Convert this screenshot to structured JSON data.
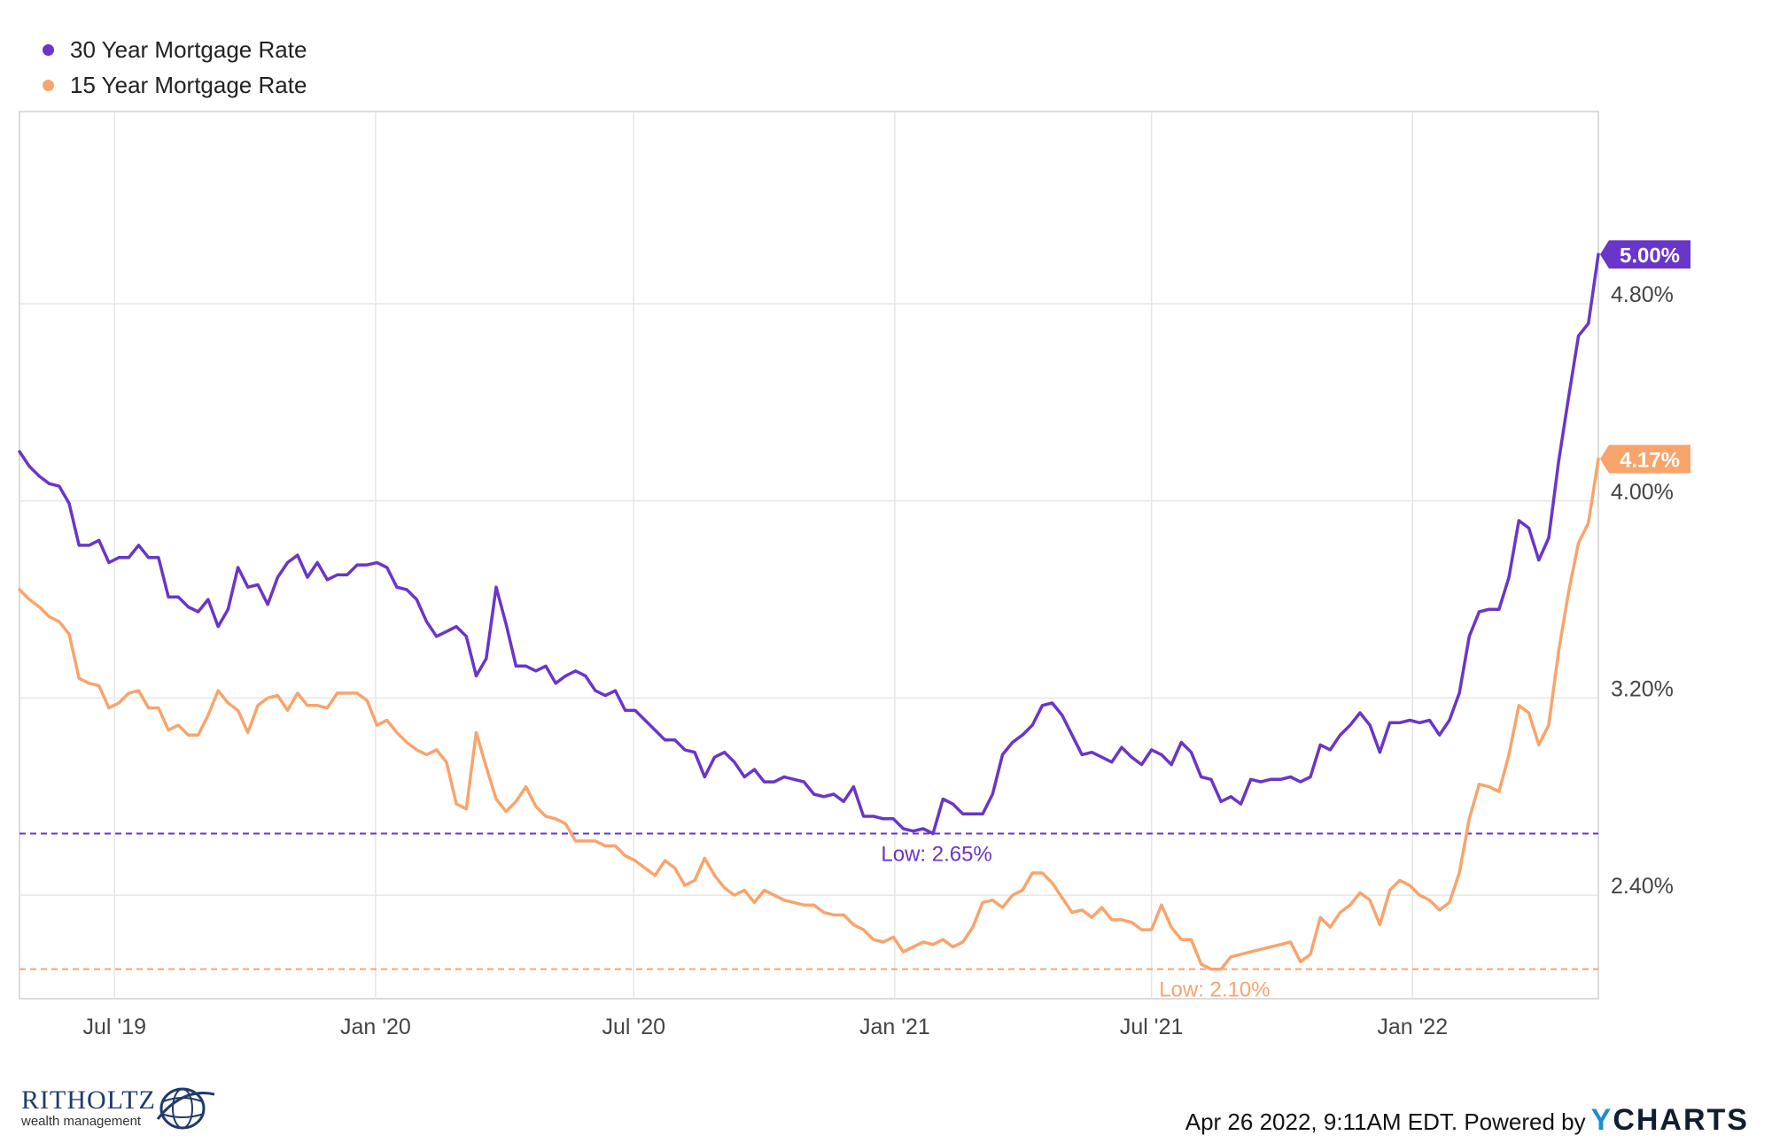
{
  "legend": [
    {
      "label": "30 Year Mortgage Rate",
      "color": "#6a35c9"
    },
    {
      "label": "15 Year Mortgage Rate",
      "color": "#f8a46c"
    }
  ],
  "footer": {
    "stamp": "Apr 26 2022, 9:11AM EDT. Powered by",
    "brand_y": "Y",
    "brand_rest": "CHARTS"
  },
  "logo": {
    "main": "RITHOLTZ",
    "sub": "wealth management"
  },
  "chart_data": {
    "type": "line",
    "x_start": "2019-04-25",
    "x_step_days": 7,
    "x_tick_labels": [
      {
        "label": "Jul '19",
        "date": "2019-07-01"
      },
      {
        "label": "Jan '20",
        "date": "2020-01-01"
      },
      {
        "label": "Jul '20",
        "date": "2020-07-01"
      },
      {
        "label": "Jan '21",
        "date": "2021-01-01"
      },
      {
        "label": "Jul '21",
        "date": "2021-07-01"
      },
      {
        "label": "Jan '22",
        "date": "2022-01-01"
      }
    ],
    "y_ticks": [
      {
        "label": "2.40%",
        "value": 2.4
      },
      {
        "label": "3.20%",
        "value": 3.2
      },
      {
        "label": "4.00%",
        "value": 4.0
      },
      {
        "label": "4.80%",
        "value": 4.8
      }
    ],
    "ylim": [
      1.98,
      5.58
    ],
    "grid": true,
    "legend_position": "top-left",
    "series": [
      {
        "name": "30 Year Mortgage Rate",
        "color": "#6a35c9",
        "last_label": "5.00%",
        "low_label": "Low: 2.65%",
        "low_value": 2.65,
        "values": [
          4.2,
          4.14,
          4.1,
          4.07,
          4.06,
          3.99,
          3.82,
          3.82,
          3.84,
          3.75,
          3.77,
          3.77,
          3.82,
          3.77,
          3.77,
          3.61,
          3.61,
          3.57,
          3.55,
          3.6,
          3.49,
          3.56,
          3.73,
          3.65,
          3.66,
          3.58,
          3.69,
          3.75,
          3.78,
          3.69,
          3.75,
          3.68,
          3.7,
          3.7,
          3.74,
          3.74,
          3.75,
          3.73,
          3.65,
          3.64,
          3.6,
          3.51,
          3.45,
          3.47,
          3.49,
          3.45,
          3.29,
          3.36,
          3.65,
          3.5,
          3.33,
          3.33,
          3.31,
          3.33,
          3.26,
          3.29,
          3.31,
          3.29,
          3.23,
          3.21,
          3.23,
          3.15,
          3.15,
          3.11,
          3.07,
          3.03,
          3.03,
          2.99,
          2.98,
          2.88,
          2.96,
          2.98,
          2.94,
          2.88,
          2.91,
          2.86,
          2.86,
          2.88,
          2.87,
          2.86,
          2.81,
          2.8,
          2.81,
          2.78,
          2.84,
          2.72,
          2.72,
          2.71,
          2.71,
          2.67,
          2.66,
          2.67,
          2.65,
          2.79,
          2.77,
          2.73,
          2.73,
          2.73,
          2.81,
          2.97,
          3.02,
          3.05,
          3.09,
          3.17,
          3.18,
          3.13,
          3.05,
          2.97,
          2.98,
          2.96,
          2.94,
          3.0,
          2.96,
          2.93,
          2.99,
          2.97,
          2.93,
          3.02,
          2.98,
          2.88,
          2.87,
          2.78,
          2.8,
          2.77,
          2.87,
          2.86,
          2.87,
          2.87,
          2.88,
          2.86,
          2.88,
          3.01,
          2.99,
          3.05,
          3.09,
          3.14,
          3.09,
          2.98,
          3.1,
          3.1,
          3.11,
          3.1,
          3.11,
          3.05,
          3.11,
          3.22,
          3.45,
          3.55,
          3.56,
          3.56,
          3.69,
          3.92,
          3.89,
          3.76,
          3.85,
          4.16,
          4.42,
          4.67,
          4.72,
          5.0
        ]
      },
      {
        "name": "15 Year Mortgage Rate",
        "color": "#f8a46c",
        "last_label": "4.17%",
        "low_label": "Low: 2.10%",
        "low_value": 2.1,
        "values": [
          3.64,
          3.6,
          3.57,
          3.53,
          3.51,
          3.46,
          3.28,
          3.26,
          3.25,
          3.16,
          3.18,
          3.22,
          3.23,
          3.16,
          3.16,
          3.07,
          3.09,
          3.05,
          3.05,
          3.13,
          3.23,
          3.18,
          3.15,
          3.06,
          3.17,
          3.2,
          3.21,
          3.15,
          3.22,
          3.17,
          3.17,
          3.16,
          3.22,
          3.22,
          3.22,
          3.19,
          3.09,
          3.11,
          3.06,
          3.02,
          2.99,
          2.97,
          2.99,
          2.94,
          2.77,
          2.75,
          3.06,
          2.92,
          2.79,
          2.74,
          2.78,
          2.84,
          2.76,
          2.72,
          2.71,
          2.69,
          2.62,
          2.62,
          2.62,
          2.6,
          2.6,
          2.56,
          2.54,
          2.51,
          2.48,
          2.54,
          2.51,
          2.44,
          2.46,
          2.55,
          2.48,
          2.43,
          2.4,
          2.42,
          2.37,
          2.42,
          2.4,
          2.38,
          2.37,
          2.36,
          2.36,
          2.33,
          2.32,
          2.32,
          2.28,
          2.26,
          2.22,
          2.21,
          2.23,
          2.17,
          2.19,
          2.21,
          2.2,
          2.22,
          2.19,
          2.21,
          2.27,
          2.37,
          2.38,
          2.35,
          2.4,
          2.42,
          2.49,
          2.49,
          2.45,
          2.39,
          2.33,
          2.34,
          2.31,
          2.35,
          2.3,
          2.3,
          2.29,
          2.26,
          2.26,
          2.36,
          2.27,
          2.22,
          2.22,
          2.12,
          2.1,
          2.1,
          2.15,
          2.16,
          2.17,
          2.18,
          2.19,
          2.2,
          2.21,
          2.13,
          2.16,
          2.31,
          2.27,
          2.33,
          2.36,
          2.41,
          2.38,
          2.28,
          2.42,
          2.46,
          2.44,
          2.4,
          2.38,
          2.34,
          2.37,
          2.49,
          2.71,
          2.85,
          2.84,
          2.82,
          2.97,
          3.17,
          3.14,
          3.01,
          3.09,
          3.39,
          3.63,
          3.83,
          3.91,
          4.17
        ]
      }
    ]
  }
}
